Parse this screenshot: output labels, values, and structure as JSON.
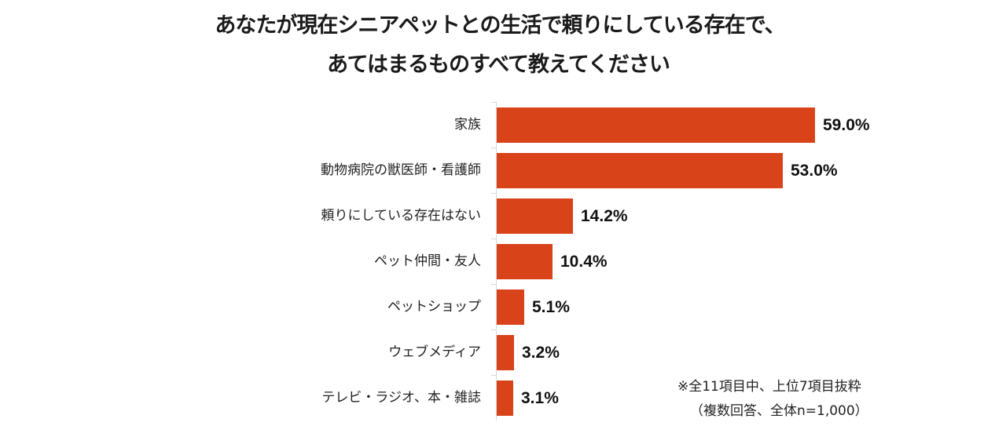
{
  "title": {
    "line1": "あなたが現在シニアペットとの生活で頼りにしている存在で、",
    "line2": "あてはまるものすべて教えてください"
  },
  "notes": {
    "line1": "※全11項目中、上位7項目抜粋",
    "line2": "（複数回答、全体n=1,000）"
  },
  "style": {
    "bar_color": "#D9431A",
    "axis_color": "#D9D9D9"
  },
  "chart_data": {
    "type": "bar",
    "orientation": "horizontal",
    "title": "あなたが現在シニアペットとの生活で頼りにしている存在で、あてはまるものすべて教えてください",
    "categories": [
      "家族",
      "動物病院の獣医師・看護師",
      "頼りにしている存在はない",
      "ペット仲間・友人",
      "ペットショップ",
      "ウェブメディア",
      "テレビ・ラジオ、本・雑誌"
    ],
    "values": [
      59.0,
      53.0,
      14.2,
      10.4,
      5.1,
      3.2,
      3.1
    ],
    "value_labels": [
      "59.0%",
      "53.0%",
      "14.2%",
      "10.4%",
      "5.1%",
      "3.2%",
      "3.1%"
    ],
    "unit": "%",
    "xlabel": "",
    "ylabel": "",
    "xlim": [
      0,
      65
    ],
    "grid": false,
    "legend": null,
    "annotations": [
      "※全11項目中、上位7項目抜粋",
      "（複数回答、全体n=1,000）"
    ]
  }
}
